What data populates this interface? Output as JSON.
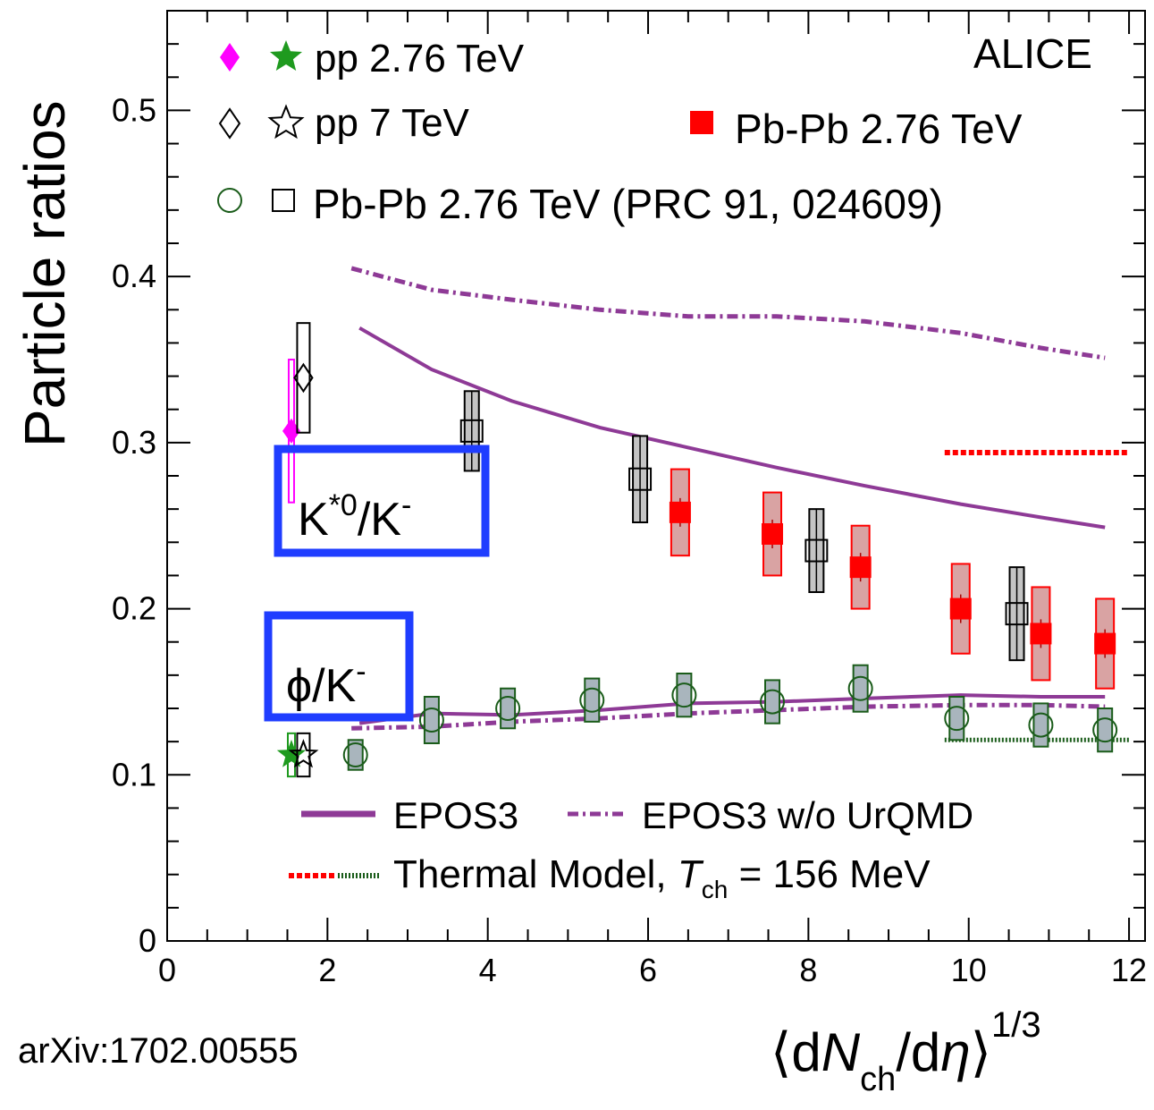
{
  "chart_data": {
    "type": "scatter",
    "collaboration_label": "ALICE",
    "ylabel": "Particle ratios",
    "xlabel_parts": {
      "open": "⟨d",
      "N": "N",
      "ch": "ch",
      "slash": "/d",
      "eta": "η",
      "close": "⟩",
      "power": "1/3"
    },
    "xlim": [
      0,
      12.2
    ],
    "ylim": [
      0,
      0.56
    ],
    "x_ticks": [
      "0",
      "2",
      "4",
      "6",
      "8",
      "10",
      "12"
    ],
    "x_tick_values": [
      0,
      2,
      4,
      6,
      8,
      10,
      12
    ],
    "y_ticks": [
      "0",
      "0.1",
      "0.2",
      "0.3",
      "0.4",
      "0.5"
    ],
    "y_tick_values": [
      0,
      0.1,
      0.2,
      0.3,
      0.4,
      0.5
    ],
    "arxiv": "arXiv:1702.00555",
    "box_labels": {
      "kstar": {
        "base": "K",
        "sup": "*0",
        "mid": "/K",
        "sup2": "-"
      },
      "phi": {
        "base": "ϕ/K",
        "sup": "-"
      }
    },
    "legend": {
      "pp276": "pp 2.76 TeV",
      "pp7": "pp 7 TeV",
      "pbpb_new": "Pb-Pb 2.76 TeV",
      "pbpb_old": "Pb-Pb 2.76 TeV (PRC 91, 024609)",
      "epos3": "EPOS3",
      "epos3_nourqmd": "EPOS3 w/o UrQMD",
      "thermal_prefix": "Thermal Model, ",
      "thermal_T": "T",
      "thermal_sub": "ch",
      "thermal_suffix": " = 156 MeV"
    },
    "colors": {
      "pbpb_new": "#ff0000",
      "pbpb_old": "#000000",
      "phi_open": "#1a5c1a",
      "pp276_kstar": "#ff00ff",
      "pp276_phi": "#1f9a1f",
      "epos": "#8e3a96",
      "thermal_kstar": "#ff0000",
      "thermal_phi": "#1a5c1a",
      "box": "#1f3dff"
    },
    "series": [
      {
        "name": "pp 2.76 TeV",
        "ratio": "K*0/K-",
        "x": [
          1.55
        ],
        "y": [
          0.307
        ],
        "syst": [
          0.043
        ]
      },
      {
        "name": "pp 2.76 TeV",
        "ratio": "phi/K-",
        "x": [
          1.55
        ],
        "y": [
          0.112
        ],
        "syst": [
          0.013
        ]
      },
      {
        "name": "pp 7 TeV",
        "ratio": "K*0/K-",
        "x": [
          1.7
        ],
        "y": [
          0.339
        ],
        "syst": [
          0.033
        ]
      },
      {
        "name": "pp 7 TeV",
        "ratio": "phi/K-",
        "x": [
          1.7
        ],
        "y": [
          0.112
        ],
        "syst": [
          0.013
        ]
      },
      {
        "name": "Pb-Pb 2.76 TeV",
        "ratio": "K*0/K-",
        "x": [
          6.4,
          7.55,
          8.65,
          9.9,
          10.9,
          11.7
        ],
        "y": [
          0.258,
          0.245,
          0.225,
          0.2,
          0.185,
          0.179
        ],
        "syst": [
          0.026,
          0.025,
          0.025,
          0.027,
          0.028,
          0.027
        ]
      },
      {
        "name": "Pb-Pb 2.76 TeV (PRC 91, 024609)",
        "ratio": "K*0/K-",
        "x": [
          3.8,
          5.9,
          8.1,
          10.6
        ],
        "y": [
          0.307,
          0.278,
          0.235,
          0.197
        ],
        "syst": [
          0.024,
          0.026,
          0.025,
          0.028
        ]
      },
      {
        "name": "Pb-Pb 2.76 TeV (PRC 91, 024609)",
        "ratio": "phi/K-",
        "x": [
          2.35,
          3.3,
          4.25,
          5.3,
          6.45,
          7.55,
          8.65,
          9.85,
          10.9,
          11.7
        ],
        "y": [
          0.112,
          0.133,
          0.14,
          0.145,
          0.148,
          0.144,
          0.152,
          0.134,
          0.13,
          0.127
        ],
        "syst": [
          0.009,
          0.014,
          0.012,
          0.013,
          0.013,
          0.013,
          0.014,
          0.013,
          0.013,
          0.013
        ]
      }
    ],
    "curves": [
      {
        "name": "EPOS3",
        "ratio": "K*0/K-",
        "x": [
          2.4,
          3.3,
          4.3,
          5.4,
          6.5,
          7.6,
          8.7,
          9.9,
          10.9,
          11.7
        ],
        "y": [
          0.369,
          0.344,
          0.325,
          0.309,
          0.297,
          0.285,
          0.274,
          0.263,
          0.255,
          0.249
        ]
      },
      {
        "name": "EPOS3 w/o UrQMD",
        "ratio": "K*0/K-",
        "x": [
          2.3,
          3.3,
          4.3,
          5.4,
          6.5,
          7.6,
          8.7,
          9.9,
          10.9,
          11.7
        ],
        "y": [
          0.405,
          0.392,
          0.386,
          0.38,
          0.376,
          0.376,
          0.373,
          0.366,
          0.357,
          0.351
        ]
      },
      {
        "name": "EPOS3",
        "ratio": "phi/K-",
        "x": [
          2.4,
          3.3,
          4.3,
          5.4,
          6.5,
          7.6,
          8.7,
          9.9,
          10.9,
          11.7
        ],
        "y": [
          0.131,
          0.137,
          0.136,
          0.139,
          0.143,
          0.144,
          0.146,
          0.148,
          0.147,
          0.147
        ]
      },
      {
        "name": "EPOS3 w/o UrQMD",
        "ratio": "phi/K-",
        "x": [
          2.3,
          3.3,
          4.3,
          5.4,
          6.5,
          7.6,
          8.7,
          9.9,
          10.9,
          11.7
        ],
        "y": [
          0.128,
          0.129,
          0.132,
          0.134,
          0.137,
          0.139,
          0.141,
          0.142,
          0.142,
          0.141
        ]
      }
    ],
    "thermal_model": [
      {
        "ratio": "K*0/K-",
        "x": [
          9.7,
          12.0
        ],
        "y": 0.294
      },
      {
        "ratio": "phi/K-",
        "x": [
          9.7,
          12.0
        ],
        "y": 0.121
      }
    ]
  }
}
